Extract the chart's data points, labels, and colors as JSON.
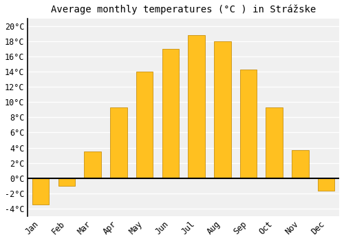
{
  "title": "Average monthly temperatures (°C ) in Strážske",
  "months": [
    "Jan",
    "Feb",
    "Mar",
    "Apr",
    "May",
    "Jun",
    "Jul",
    "Aug",
    "Sep",
    "Oct",
    "Nov",
    "Dec"
  ],
  "values": [
    -3.5,
    -1.0,
    3.5,
    9.3,
    14.0,
    17.0,
    18.8,
    18.0,
    14.3,
    9.3,
    3.7,
    -1.7
  ],
  "bar_color": "#FFC020",
  "bar_edge_color": "#C89010",
  "background_color": "#ffffff",
  "plot_bg_color": "#f0f0f0",
  "grid_color": "#ffffff",
  "zero_line_color": "#000000",
  "ylim": [
    -5,
    21
  ],
  "yticks": [
    -4,
    -2,
    0,
    2,
    4,
    6,
    8,
    10,
    12,
    14,
    16,
    18,
    20
  ],
  "title_fontsize": 10,
  "tick_fontsize": 8.5,
  "bar_width": 0.65,
  "figsize": [
    5.0,
    3.5
  ],
  "dpi": 100
}
